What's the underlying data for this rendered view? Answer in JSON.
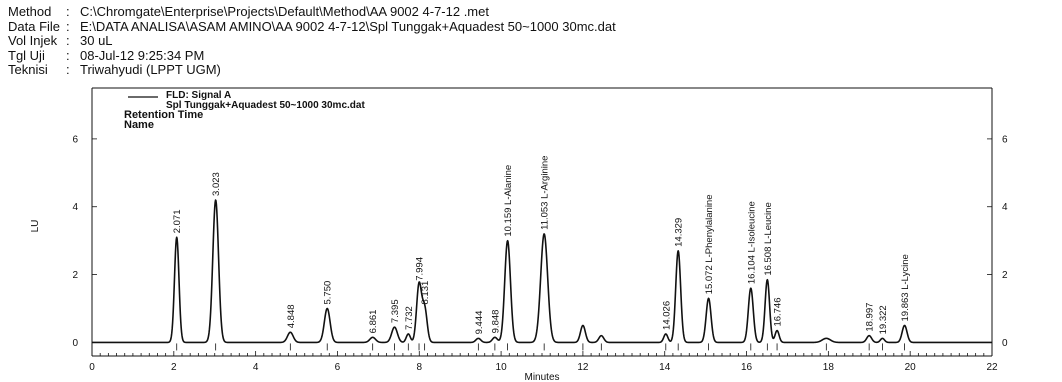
{
  "header": {
    "rows": [
      {
        "key": "Method",
        "sep": ":",
        "value": "C:\\Chromgate\\Enterprise\\Projects\\Default\\Method\\AA 9002 4-7-12 .met"
      },
      {
        "key": "Data File",
        "sep": ":",
        "value": "E:\\DATA ANALISA\\ASAM AMINO\\AA 9002 4-7-12\\Spl Tunggak+Aquadest 50~1000 30mc.dat"
      },
      {
        "key": "Vol Injek",
        "sep": ":",
        "value": "30 uL"
      },
      {
        "key": "Tgl Uji",
        "sep": ":",
        "value": " 08-Jul-12 9:25:34 PM"
      },
      {
        "key": "Teknisi",
        "sep": ":",
        "value": " Triwahyudi (LPPT UGM)"
      }
    ]
  },
  "legend": {
    "line1": "FLD: Signal A",
    "line2": "Spl Tunggak+Aquadest 50~1000 30mc.dat",
    "line3": "Retention Time",
    "line4": "Name"
  },
  "chart_data": {
    "type": "line",
    "xlabel": "Minutes",
    "ylabel": "LU",
    "xlim": [
      0,
      22
    ],
    "ylim": [
      -0.4,
      7.5
    ],
    "x_ticks": [
      "0",
      "2",
      "4",
      "6",
      "8",
      "10",
      "12",
      "14",
      "16",
      "18",
      "20",
      "22"
    ],
    "y_ticks_left": [
      "0",
      "2",
      "4",
      "6"
    ],
    "y_ticks_right": [
      "0",
      "2",
      "4",
      "6"
    ],
    "series": [
      {
        "name": "FLD: Signal A",
        "color": "#111111"
      }
    ],
    "peaks": [
      {
        "rt": 2.071,
        "height": 3.1,
        "width": 0.055,
        "label": "2.071"
      },
      {
        "rt": 3.023,
        "height": 4.2,
        "width": 0.07,
        "label": "3.023"
      },
      {
        "rt": 4.848,
        "height": 0.3,
        "width": 0.07,
        "label": "4.848"
      },
      {
        "rt": 5.75,
        "height": 1.0,
        "width": 0.07,
        "label": "5.750"
      },
      {
        "rt": 6.861,
        "height": 0.15,
        "width": 0.07,
        "label": "6.861"
      },
      {
        "rt": 7.395,
        "height": 0.45,
        "width": 0.07,
        "label": "7.395"
      },
      {
        "rt": 7.732,
        "height": 0.25,
        "width": 0.05,
        "label": "7.732"
      },
      {
        "rt": 7.994,
        "height": 1.7,
        "width": 0.06,
        "label": "7.994"
      },
      {
        "rt": 8.131,
        "height": 1.0,
        "width": 0.06,
        "label": "8.131"
      },
      {
        "rt": 9.444,
        "height": 0.12,
        "width": 0.06,
        "label": "9.444"
      },
      {
        "rt": 9.848,
        "height": 0.15,
        "width": 0.06,
        "label": "9.848"
      },
      {
        "rt": 10.159,
        "height": 3.0,
        "width": 0.07,
        "label": "10.159 L-Alanine"
      },
      {
        "rt": 11.053,
        "height": 3.2,
        "width": 0.085,
        "label": "11.053 L-Arginine"
      },
      {
        "rt": 12.0,
        "height": 0.5,
        "width": 0.06,
        "label": ""
      },
      {
        "rt": 12.45,
        "height": 0.2,
        "width": 0.06,
        "label": ""
      },
      {
        "rt": 14.026,
        "height": 0.25,
        "width": 0.05,
        "label": "14.026"
      },
      {
        "rt": 14.329,
        "height": 2.7,
        "width": 0.06,
        "label": "14.329"
      },
      {
        "rt": 15.072,
        "height": 1.3,
        "width": 0.06,
        "label": "15.072 L-Phenylalanine"
      },
      {
        "rt": 16.104,
        "height": 1.6,
        "width": 0.06,
        "label": "16.104 L-Isoleucine"
      },
      {
        "rt": 16.508,
        "height": 1.85,
        "width": 0.055,
        "label": "16.508 L-Leucine"
      },
      {
        "rt": 16.746,
        "height": 0.35,
        "width": 0.05,
        "label": "16.746"
      },
      {
        "rt": 17.95,
        "height": 0.12,
        "width": 0.1,
        "label": ""
      },
      {
        "rt": 18.997,
        "height": 0.2,
        "width": 0.06,
        "label": "18.997"
      },
      {
        "rt": 19.322,
        "height": 0.12,
        "width": 0.05,
        "label": "19.322"
      },
      {
        "rt": 19.863,
        "height": 0.5,
        "width": 0.06,
        "label": "19.863 L-Lycine"
      }
    ]
  }
}
